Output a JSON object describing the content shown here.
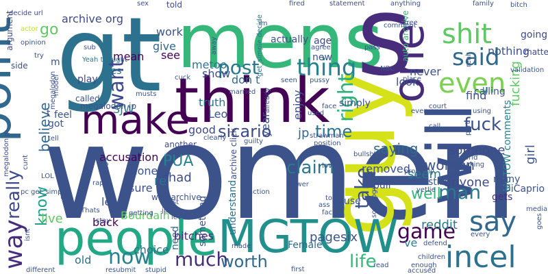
{
  "title": "",
  "palette": {
    "c1": "#440154",
    "c2": "#472c7a",
    "c3": "#3b518b",
    "c4": "#2c718e",
    "c5": "#21908d",
    "c6": "#27ad81",
    "c7": "#5cc863",
    "c8": "#aadc32",
    "c9": "#fde725"
  },
  "words": [
    {
      "text": "women",
      "color": "#3b528b"
    },
    {
      "text": "gt",
      "color": "#2c728e"
    },
    {
      "text": "mens",
      "color": "#35b779"
    },
    {
      "text": "s",
      "color": "#472d7b"
    },
    {
      "text": "think",
      "color": "#440154"
    },
    {
      "text": "guy",
      "color": "#d5e21a"
    },
    {
      "text": "one",
      "color": "#472c7a"
    },
    {
      "text": "will",
      "color": "#3b518b"
    },
    {
      "text": "people",
      "color": "#22a884"
    },
    {
      "text": "MGTOW",
      "color": "#21908d"
    },
    {
      "text": "point",
      "color": "#31688e"
    },
    {
      "text": "make",
      "color": "#440154"
    },
    {
      "text": "shit",
      "color": "#5ec962"
    },
    {
      "text": "said",
      "color": "#31688e"
    },
    {
      "text": "even",
      "color": "#7ad151"
    },
    {
      "text": "post",
      "color": "#2a788e"
    },
    {
      "text": "thing",
      "color": "#26828e"
    },
    {
      "text": "want",
      "color": "#3e4a89"
    },
    {
      "text": "right",
      "color": "#2db27d"
    },
    {
      "text": "fuck",
      "color": "#3b518b"
    },
    {
      "text": "sicario",
      "color": "#3e4a89"
    },
    {
      "text": "time",
      "color": "#2c728e"
    },
    {
      "text": "jp",
      "color": "#31688e"
    },
    {
      "text": "say",
      "color": "#31688e"
    },
    {
      "text": "incel",
      "color": "#2c728e"
    },
    {
      "text": "game",
      "color": "#440154"
    },
    {
      "text": "claim",
      "color": "#2a788e"
    },
    {
      "text": "take",
      "color": "#3b528b"
    },
    {
      "text": "much",
      "color": "#472d7b"
    },
    {
      "text": "worth",
      "color": "#31688e"
    },
    {
      "text": "life",
      "color": "#35b779"
    },
    {
      "text": "man",
      "color": "#2a788e"
    },
    {
      "text": "woman",
      "color": "#3b528b"
    },
    {
      "text": "really",
      "color": "#3e4a89"
    },
    {
      "text": "way",
      "color": "#472d7b"
    },
    {
      "text": "know",
      "color": "#1fa088"
    },
    {
      "text": "now",
      "color": "#26828e"
    },
    {
      "text": "live",
      "color": "#5ec962"
    },
    {
      "text": "PUA",
      "color": "#26828e"
    },
    {
      "text": "believe",
      "color": "#31688e"
    },
    {
      "text": "go",
      "color": "#5ec962"
    },
    {
      "text": "chad",
      "color": "#3e4a89"
    },
    {
      "text": "saying",
      "color": "#31688e"
    },
    {
      "text": "someone",
      "color": "#3e4a89"
    },
    {
      "text": "removed",
      "color": "#3b528b"
    },
    {
      "text": "seem",
      "color": "#2a788e"
    },
    {
      "text": "anyone",
      "color": "#3e4a89"
    },
    {
      "text": "well",
      "color": "#35b779"
    },
    {
      "text": "reddit",
      "color": "#2a788e"
    },
    {
      "text": "pagesix",
      "color": "#3b528b"
    },
    {
      "text": "girl",
      "color": "#3b528b"
    },
    {
      "text": "ve",
      "color": "#26828e"
    },
    {
      "text": "archive org",
      "color": "#3e4a89"
    },
    {
      "text": "work",
      "color": "#3b528b"
    },
    {
      "text": "give",
      "color": "#31688e"
    },
    {
      "text": "see",
      "color": "#440154"
    },
    {
      "text": "metoo",
      "color": "#2a788e"
    },
    {
      "text": "show",
      "color": "#3e4a89"
    },
    {
      "text": "don t",
      "color": "#31688e"
    },
    {
      "text": "truth",
      "color": "#2c728e"
    },
    {
      "text": "Leo",
      "color": "#3b528b"
    },
    {
      "text": "year",
      "color": "#3b528b"
    },
    {
      "text": "enjoy",
      "color": "#3b528b"
    },
    {
      "text": "accusation",
      "color": "#440154"
    },
    {
      "text": "good",
      "color": "#3e4a89"
    },
    {
      "text": "money",
      "color": "#3b528b"
    },
    {
      "text": "re",
      "color": "#2c728e"
    },
    {
      "text": "sure",
      "color": "#3b528b"
    },
    {
      "text": "let",
      "color": "#3b528b"
    },
    {
      "text": "Bourdain",
      "color": "#5ec962"
    },
    {
      "text": "back",
      "color": "#440154"
    },
    {
      "text": "old",
      "color": "#2c728e"
    },
    {
      "text": "choice",
      "color": "#2c728e"
    },
    {
      "text": "need",
      "color": "#31688e"
    },
    {
      "text": "something",
      "color": "#3b528b"
    },
    {
      "text": "bitches",
      "color": "#472d7b"
    },
    {
      "text": "understand",
      "color": "#2c728e"
    },
    {
      "text": "Female",
      "color": "#31688e"
    },
    {
      "text": "find",
      "color": "#3b528b"
    },
    {
      "text": "calling",
      "color": "#3b528b"
    },
    {
      "text": "never",
      "color": "#3b528b"
    },
    {
      "text": "look",
      "color": "#3b528b"
    },
    {
      "text": "nothing",
      "color": "#3b528b"
    },
    {
      "text": "going",
      "color": "#3e4a89"
    },
    {
      "text": "matter",
      "color": "#3e4a89"
    },
    {
      "text": "fucking",
      "color": "#5ec962"
    },
    {
      "text": "MGTOW comments",
      "color": "#26828e"
    },
    {
      "text": "many",
      "color": "#3b528b"
    },
    {
      "text": "DiCaprio",
      "color": "#3b528b"
    },
    {
      "text": "gets",
      "color": "#472d7b"
    },
    {
      "text": "still",
      "color": "#3b528b"
    },
    {
      "text": "pull",
      "color": "#3e4a89"
    },
    {
      "text": "use",
      "color": "#3b528b"
    },
    {
      "text": "mean",
      "color": "#440154"
    },
    {
      "text": "Yes",
      "color": "#2c728e"
    },
    {
      "text": "SJW",
      "color": "#2c728e"
    },
    {
      "text": "feel",
      "color": "#3b528b"
    },
    {
      "text": "got",
      "color": "#3b528b"
    },
    {
      "text": "t",
      "color": "#3b528b"
    },
    {
      "text": "m",
      "color": "#3b528b"
    },
    {
      "text": "play",
      "color": "#3e4a89"
    },
    {
      "text": "age",
      "color": "#3e4a89"
    },
    {
      "text": "new",
      "color": "#3b528b"
    },
    {
      "text": "actually",
      "color": "#3b528b"
    },
    {
      "text": "simply",
      "color": "#3b528b"
    },
    {
      "text": "u",
      "color": "#2c728e"
    },
    {
      "text": "told",
      "color": "#3e4a89"
    },
    {
      "text": "another",
      "color": "#3e4a89"
    },
    {
      "text": "web archive",
      "color": "#3b528b"
    },
    {
      "text": "archive click",
      "color": "#3e4a89"
    },
    {
      "text": "auto archive",
      "color": "#35b779"
    },
    {
      "text": "argument",
      "color": "#3e4a89"
    },
    {
      "text": "side",
      "color": "#3b528b"
    },
    {
      "text": "decide url",
      "color": "#3e4a89"
    },
    {
      "text": "get_simple decide",
      "color": "#2c728e"
    },
    {
      "text": "called",
      "color": "#3b528b"
    },
    {
      "text": "megalodon jp",
      "color": "#3b528b"
    },
    {
      "text": "megalodon jp",
      "color": "#3e4a89"
    },
    {
      "text": "fired",
      "color": "#3b528b"
    },
    {
      "text": "statement",
      "color": "#3e4a89"
    },
    {
      "text": "anything",
      "color": "#3b528b"
    },
    {
      "text": "free",
      "color": "#3b528b"
    },
    {
      "text": "family",
      "color": "#3b528b"
    },
    {
      "text": "bitch",
      "color": "#3b528b"
    },
    {
      "text": "validation",
      "color": "#3b528b"
    },
    {
      "text": "sex",
      "color": "#3b528b"
    },
    {
      "text": "actor",
      "color": "#bddf26"
    },
    {
      "text": "opinion",
      "color": "#3b528b"
    },
    {
      "text": "try",
      "color": "#3e4a89"
    },
    {
      "text": "Yeah thought",
      "color": "#2c728e"
    },
    {
      "text": "sub",
      "color": "#3b528b"
    },
    {
      "text": "cuck",
      "color": "#3b528b"
    },
    {
      "text": "married",
      "color": "#3b528b"
    },
    {
      "text": "seen",
      "color": "#3b528b"
    },
    {
      "text": "pussy",
      "color": "#3b528b"
    },
    {
      "text": "pass",
      "color": "#3b528b"
    },
    {
      "text": "NBC",
      "color": "#3b528b"
    },
    {
      "text": "place",
      "color": "#3b528b"
    },
    {
      "text": "real",
      "color": "#3b528b"
    },
    {
      "text": "court",
      "color": "#3b528b"
    },
    {
      "text": "using",
      "color": "#3b528b"
    },
    {
      "text": "everyone",
      "color": "#3b528b"
    },
    {
      "text": "call",
      "color": "#3b528b"
    },
    {
      "text": "part",
      "color": "#3b528b"
    },
    {
      "text": "face",
      "color": "#3b528b"
    },
    {
      "text": "used",
      "color": "#3b528b"
    },
    {
      "text": "guilty",
      "color": "#3b528b"
    },
    {
      "text": "strawman",
      "color": "#3b528b"
    },
    {
      "text": "position",
      "color": "#3b528b"
    },
    {
      "text": "clearly",
      "color": "#3b528b"
    },
    {
      "text": "bullshit",
      "color": "#3b528b"
    },
    {
      "text": "world",
      "color": "#3b528b"
    },
    {
      "text": "probably",
      "color": "#3b528b"
    },
    {
      "text": "making",
      "color": "#3b528b"
    },
    {
      "text": "love",
      "color": "#3b528b"
    },
    {
      "text": "power",
      "color": "#3b528b"
    },
    {
      "text": "reaction",
      "color": "#3b528b"
    },
    {
      "text": "sicario99",
      "color": "#3b528b"
    },
    {
      "text": "getting",
      "color": "#3b528b"
    },
    {
      "text": "jp pc",
      "color": "#3b528b"
    },
    {
      "text": "last",
      "color": "#3b528b"
    },
    {
      "text": "level",
      "color": "#3b528b"
    },
    {
      "text": "made",
      "color": "#3b528b"
    },
    {
      "text": "read",
      "color": "#3b528b"
    },
    {
      "text": "first",
      "color": "#3b528b"
    },
    {
      "text": "enough",
      "color": "#3b528b"
    },
    {
      "text": "accused",
      "color": "#3b528b"
    },
    {
      "text": "children",
      "color": "#3b528b"
    },
    {
      "text": "defend",
      "color": "#3b528b"
    },
    {
      "text": "every",
      "color": "#3b528b"
    },
    {
      "text": "media",
      "color": "#3b528b"
    },
    {
      "text": "goes",
      "color": "#3b528b"
    },
    {
      "text": "stupid",
      "color": "#3b528b"
    },
    {
      "text": "resubmit",
      "color": "#3b528b"
    },
    {
      "text": "stay",
      "color": "#3b528b"
    },
    {
      "text": "Thats",
      "color": "#3b528b"
    },
    {
      "text": "lot",
      "color": "#3b528b"
    },
    {
      "text": "LOL",
      "color": "#3b528b"
    },
    {
      "text": "pc get_simple",
      "color": "#3b528b"
    },
    {
      "text": "cunt",
      "color": "#3b528b"
    },
    {
      "text": "tell",
      "color": "#3b528b"
    },
    {
      "text": "rape",
      "color": "#3b528b"
    },
    {
      "text": "toxic",
      "color": "#3b528b"
    },
    {
      "text": "ass",
      "color": "#3b528b"
    },
    {
      "text": "fact",
      "color": "#3b528b"
    },
    {
      "text": "yet",
      "color": "#3b528b"
    },
    {
      "text": "lie",
      "color": "#3b528b"
    },
    {
      "text": "different",
      "color": "#3b528b"
    },
    {
      "text": "isnt",
      "color": "#3b528b"
    },
    {
      "text": "im",
      "color": "#3b528b"
    },
    {
      "text": "comment",
      "color": "#3b528b"
    },
    {
      "text": "agree",
      "color": "#3b528b"
    },
    {
      "text": "away",
      "color": "#3b528b"
    },
    {
      "text": "already",
      "color": "#3b528b"
    },
    {
      "text": "sociology",
      "color": "#3b528b"
    },
    {
      "text": "model",
      "color": "#3b528b"
    },
    {
      "text": "musts",
      "color": "#3b528b"
    },
    {
      "text": "megalodon",
      "color": "#3b528b"
    }
  ]
}
